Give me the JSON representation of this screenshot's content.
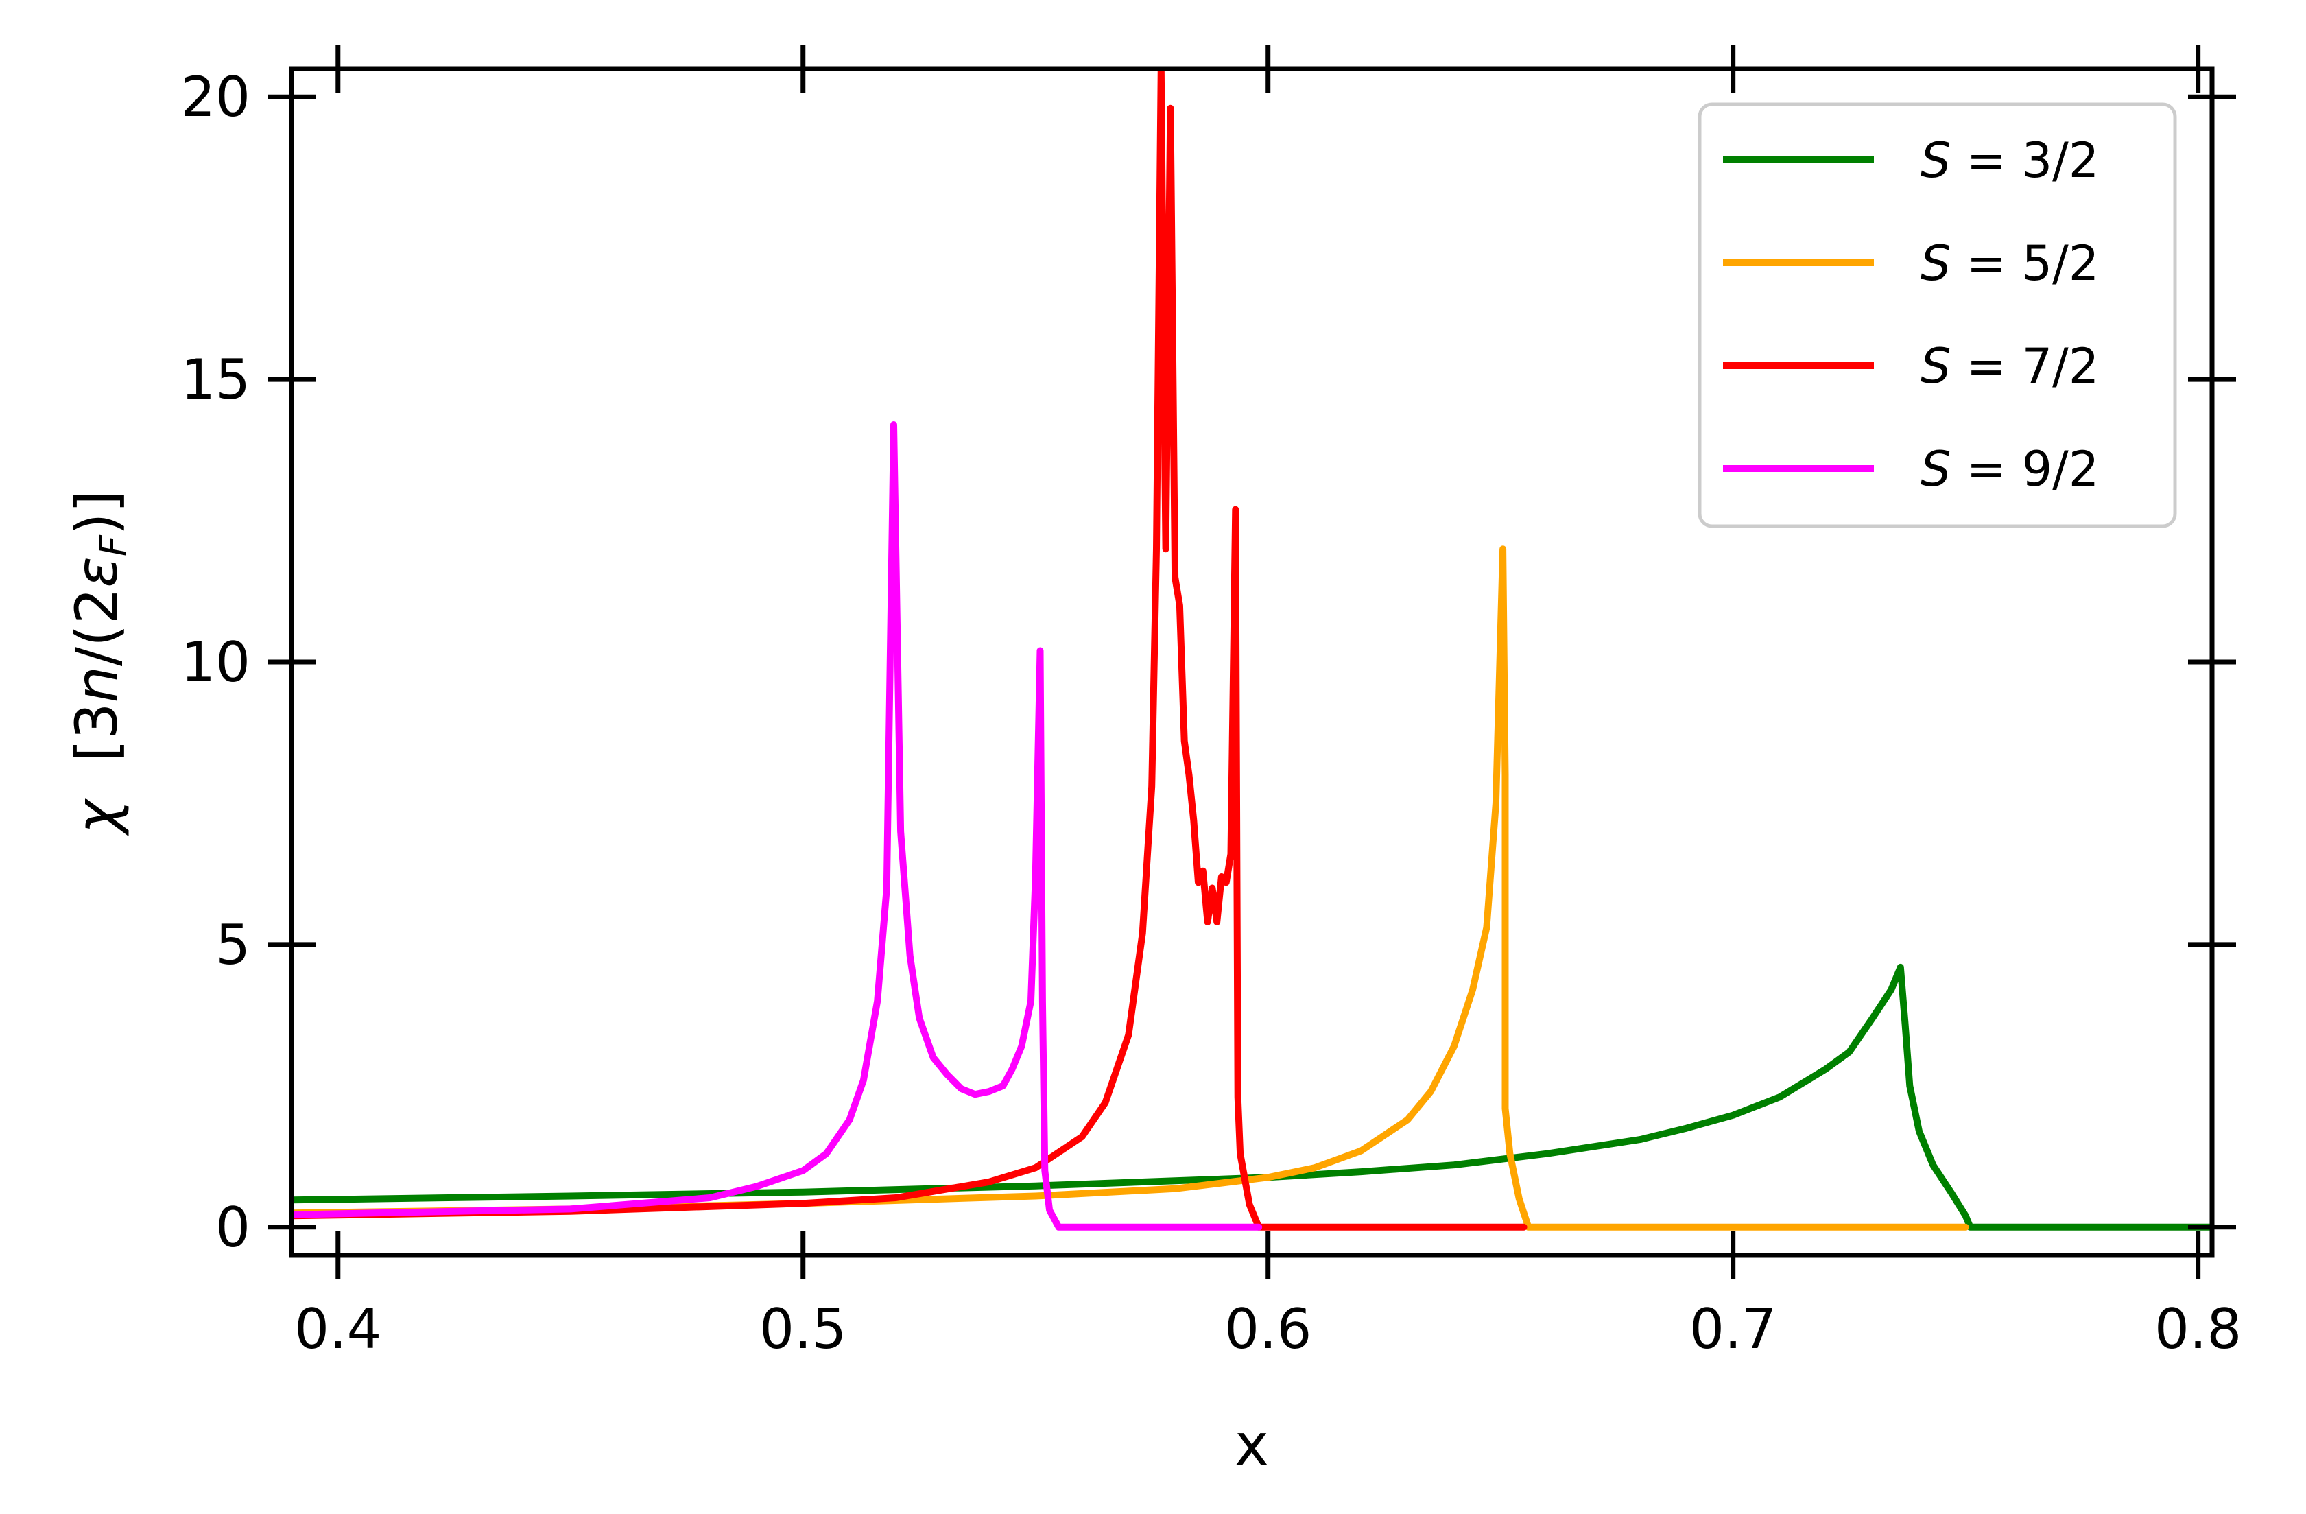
{
  "chart_data": {
    "type": "line",
    "xlabel": "x",
    "ylabel": {
      "symbol": "χ",
      "open": "[",
      "n3": "3",
      "n": "n",
      "slash": "/(2",
      "eps": "ε",
      "sub": "F",
      "close": ")]"
    },
    "xlim": [
      0.39,
      0.803
    ],
    "ylim": [
      -0.5,
      20.5
    ],
    "xticks": [
      0.4,
      0.5,
      0.6,
      0.7,
      0.8
    ],
    "xtick_labels": [
      "0.4",
      "0.5",
      "0.6",
      "0.7",
      "0.8"
    ],
    "yticks": [
      0,
      5,
      10,
      15,
      20
    ],
    "ytick_labels": [
      "0",
      "5",
      "10",
      "15",
      "20"
    ],
    "grid": false,
    "legend_position": "top-right",
    "series": [
      {
        "name": "S = 3/2",
        "name_var": "S",
        "name_rest": " = 3/2",
        "color": "#008000",
        "points": [
          [
            0.39,
            0.48
          ],
          [
            0.45,
            0.55
          ],
          [
            0.5,
            0.62
          ],
          [
            0.55,
            0.73
          ],
          [
            0.6,
            0.88
          ],
          [
            0.62,
            0.98
          ],
          [
            0.64,
            1.1
          ],
          [
            0.66,
            1.3
          ],
          [
            0.68,
            1.55
          ],
          [
            0.69,
            1.75
          ],
          [
            0.7,
            1.98
          ],
          [
            0.71,
            2.3
          ],
          [
            0.72,
            2.8
          ],
          [
            0.725,
            3.1
          ],
          [
            0.73,
            3.7
          ],
          [
            0.734,
            4.2
          ],
          [
            0.736,
            4.6
          ],
          [
            0.737,
            3.6
          ],
          [
            0.738,
            2.5
          ],
          [
            0.74,
            1.7
          ],
          [
            0.743,
            1.1
          ],
          [
            0.747,
            0.6
          ],
          [
            0.75,
            0.2
          ],
          [
            0.751,
            0.0
          ],
          [
            0.803,
            0.0
          ]
        ]
      },
      {
        "name": "S = 5/2",
        "name_var": "S",
        "name_rest": " = 5/2",
        "color": "#ffa500",
        "points": [
          [
            0.39,
            0.25
          ],
          [
            0.45,
            0.32
          ],
          [
            0.5,
            0.42
          ],
          [
            0.55,
            0.55
          ],
          [
            0.58,
            0.68
          ],
          [
            0.6,
            0.88
          ],
          [
            0.61,
            1.05
          ],
          [
            0.62,
            1.35
          ],
          [
            0.63,
            1.9
          ],
          [
            0.635,
            2.4
          ],
          [
            0.64,
            3.2
          ],
          [
            0.644,
            4.2
          ],
          [
            0.647,
            5.3
          ],
          [
            0.649,
            7.5
          ],
          [
            0.6505,
            12.0
          ],
          [
            0.651,
            8.0
          ],
          [
            0.651,
            2.1
          ],
          [
            0.652,
            1.3
          ],
          [
            0.654,
            0.5
          ],
          [
            0.656,
            0.0
          ],
          [
            0.75,
            0.0
          ]
        ]
      },
      {
        "name": "S = 7/2",
        "name_var": "S",
        "name_rest": " = 7/2",
        "color": "#ff0000",
        "points": [
          [
            0.39,
            0.2
          ],
          [
            0.45,
            0.28
          ],
          [
            0.5,
            0.42
          ],
          [
            0.52,
            0.52
          ],
          [
            0.54,
            0.8
          ],
          [
            0.55,
            1.05
          ],
          [
            0.56,
            1.6
          ],
          [
            0.565,
            2.2
          ],
          [
            0.57,
            3.4
          ],
          [
            0.573,
            5.2
          ],
          [
            0.575,
            7.8
          ],
          [
            0.576,
            12.0
          ],
          [
            0.577,
            20.5
          ],
          [
            0.5775,
            16.0
          ],
          [
            0.578,
            12.0
          ],
          [
            0.579,
            19.8
          ],
          [
            0.58,
            11.5
          ],
          [
            0.581,
            11.0
          ],
          [
            0.582,
            8.6
          ],
          [
            0.583,
            8.0
          ],
          [
            0.584,
            7.2
          ],
          [
            0.585,
            6.1
          ],
          [
            0.586,
            6.3
          ],
          [
            0.587,
            5.4
          ],
          [
            0.588,
            6.0
          ],
          [
            0.589,
            5.4
          ],
          [
            0.59,
            6.2
          ],
          [
            0.591,
            6.1
          ],
          [
            0.592,
            6.6
          ],
          [
            0.593,
            12.7
          ],
          [
            0.5935,
            2.3
          ],
          [
            0.594,
            1.3
          ],
          [
            0.596,
            0.4
          ],
          [
            0.598,
            0.0
          ],
          [
            0.655,
            0.0
          ]
        ]
      },
      {
        "name": "S = 9/2",
        "name_var": "S",
        "name_rest": " = 9/2",
        "color": "#ff00ff",
        "points": [
          [
            0.39,
            0.22
          ],
          [
            0.45,
            0.32
          ],
          [
            0.48,
            0.52
          ],
          [
            0.49,
            0.72
          ],
          [
            0.5,
            1.0
          ],
          [
            0.505,
            1.3
          ],
          [
            0.51,
            1.9
          ],
          [
            0.513,
            2.6
          ],
          [
            0.516,
            4.0
          ],
          [
            0.518,
            6.0
          ],
          [
            0.5195,
            14.2
          ],
          [
            0.521,
            7.0
          ],
          [
            0.523,
            4.8
          ],
          [
            0.525,
            3.7
          ],
          [
            0.528,
            3.0
          ],
          [
            0.531,
            2.7
          ],
          [
            0.534,
            2.45
          ],
          [
            0.537,
            2.35
          ],
          [
            0.54,
            2.4
          ],
          [
            0.543,
            2.5
          ],
          [
            0.545,
            2.8
          ],
          [
            0.547,
            3.2
          ],
          [
            0.549,
            4.0
          ],
          [
            0.55,
            6.2
          ],
          [
            0.551,
            10.2
          ],
          [
            0.5515,
            4.0
          ],
          [
            0.552,
            1.0
          ],
          [
            0.553,
            0.3
          ],
          [
            0.555,
            0.0
          ],
          [
            0.598,
            0.0
          ]
        ]
      }
    ]
  }
}
